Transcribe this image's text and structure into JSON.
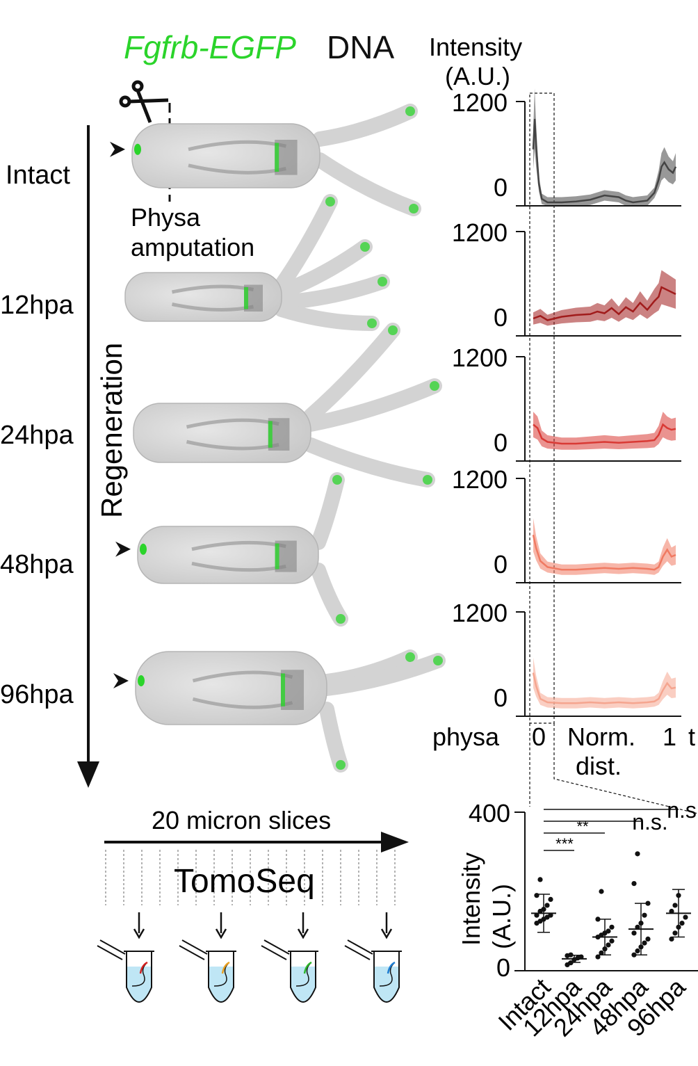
{
  "header": {
    "construct": "Fgfrb-EGFP",
    "stain": "DNA",
    "construct_color": "#2bd42b"
  },
  "schematic": {
    "amputation_label_1": "Physa",
    "amputation_label_2": "amputation",
    "axis_label": "Regeneration",
    "scissors_icon": "scissors-icon",
    "marker_icon": "arrowhead-icon"
  },
  "conditions": [
    {
      "label": "Intact",
      "color": "#444444",
      "arrowhead": true
    },
    {
      "label": "12hpa",
      "color": "#a11c1c",
      "arrowhead": false
    },
    {
      "label": "24hpa",
      "color": "#d93a35",
      "arrowhead": false
    },
    {
      "label": "48hpa",
      "color": "#f07a62",
      "arrowhead": true
    },
    {
      "label": "96hpa",
      "color": "#f5a58f",
      "arrowhead": true
    }
  ],
  "profiles": {
    "ylabel_1": "Intensity",
    "ylabel_2": "(A.U.)",
    "ytick_top": "1200",
    "ytick_bottom": "0",
    "x_left_label": "physa",
    "x_tick_0": "0",
    "x_axis_label_1": "Norm.",
    "x_axis_label_2": "dist.",
    "x_tick_1": "1",
    "x_right_label_partial": "t"
  },
  "tomoseq": {
    "slices_label": "20 micron slices",
    "method_label": "TomoSeq",
    "tube_icon": "eppendorf-tube-icon",
    "tube_liquid_color": "#bfe6f5",
    "tube_line_colors": [
      "#d42020",
      "#e8a020",
      "#2bb52b",
      "#1f7fd4"
    ]
  },
  "chart_data": [
    {
      "type": "line",
      "title": "",
      "xlabel": "Norm. dist.",
      "ylabel": "Intensity (A.U.)",
      "xlim": [
        0,
        1
      ],
      "ylim": [
        0,
        1200
      ],
      "shaded_band": "mean ± sd",
      "series": [
        {
          "name": "Intact",
          "x": [
            0,
            0.01,
            0.02,
            0.04,
            0.06,
            0.1,
            0.2,
            0.3,
            0.4,
            0.5,
            0.6,
            0.65,
            0.7,
            0.75,
            0.8,
            0.85,
            0.88,
            0.9,
            0.92,
            0.95,
            0.98,
            1.0
          ],
          "values": [
            650,
            1000,
            700,
            250,
            80,
            40,
            40,
            50,
            70,
            120,
            100,
            60,
            40,
            50,
            60,
            150,
            300,
            450,
            500,
            420,
            380,
            450
          ]
        },
        {
          "name": "12hpa",
          "x": [
            0,
            0.05,
            0.1,
            0.2,
            0.3,
            0.4,
            0.45,
            0.5,
            0.55,
            0.6,
            0.65,
            0.7,
            0.75,
            0.8,
            0.85,
            0.88,
            0.9,
            0.95,
            1.0
          ],
          "values": [
            200,
            230,
            180,
            220,
            240,
            250,
            280,
            260,
            320,
            250,
            330,
            280,
            380,
            300,
            400,
            450,
            560,
            520,
            480
          ]
        },
        {
          "name": "24hpa",
          "x": [
            0,
            0.03,
            0.06,
            0.1,
            0.2,
            0.3,
            0.4,
            0.5,
            0.6,
            0.7,
            0.8,
            0.85,
            0.88,
            0.91,
            0.94,
            0.97,
            1.0
          ],
          "values": [
            420,
            380,
            260,
            220,
            200,
            200,
            210,
            220,
            210,
            220,
            230,
            240,
            300,
            420,
            380,
            360,
            370
          ]
        },
        {
          "name": "48hpa",
          "x": [
            0,
            0.02,
            0.05,
            0.1,
            0.2,
            0.3,
            0.4,
            0.5,
            0.6,
            0.7,
            0.8,
            0.85,
            0.88,
            0.91,
            0.94,
            0.97,
            1.0
          ],
          "values": [
            550,
            400,
            250,
            180,
            150,
            150,
            160,
            170,
            160,
            170,
            160,
            150,
            180,
            300,
            380,
            300,
            320
          ]
        },
        {
          "name": "96hpa",
          "x": [
            0,
            0.02,
            0.05,
            0.1,
            0.2,
            0.3,
            0.4,
            0.5,
            0.6,
            0.7,
            0.8,
            0.85,
            0.88,
            0.91,
            0.94,
            0.97,
            1.0
          ],
          "values": [
            500,
            350,
            200,
            160,
            150,
            150,
            160,
            150,
            160,
            150,
            160,
            170,
            200,
            300,
            380,
            320,
            330
          ]
        }
      ]
    },
    {
      "type": "scatter",
      "title": "",
      "xlabel": "",
      "ylabel": "Intensity (A.U.)",
      "ylim": [
        0,
        400
      ],
      "yticks": [
        "400",
        "0"
      ],
      "categories": [
        "Intact",
        "12hpa",
        "24hpa",
        "48hpa",
        "96hpa"
      ],
      "points": [
        [
          120,
          125,
          130,
          135,
          140,
          140,
          150,
          155,
          165,
          180,
          190,
          230
        ],
        [
          15,
          20,
          28,
          32,
          35,
          38,
          40
        ],
        [
          35,
          45,
          55,
          65,
          75,
          85,
          90,
          95,
          100,
          110,
          130,
          200
        ],
        [
          40,
          50,
          60,
          70,
          80,
          95,
          110,
          120,
          140,
          170,
          220,
          295
        ],
        [
          80,
          95,
          110,
          120,
          135,
          150,
          165,
          190
        ]
      ],
      "mean": [
        145,
        30,
        85,
        105,
        145
      ],
      "sd": [
        48,
        9,
        45,
        65,
        60
      ],
      "comparisons": [
        {
          "pair": [
            "Intact",
            "12hpa"
          ],
          "label": "***"
        },
        {
          "pair": [
            "Intact",
            "24hpa"
          ],
          "label": "**"
        },
        {
          "pair": [
            "Intact",
            "48hpa"
          ],
          "label": "n.s."
        },
        {
          "pair": [
            "Intact",
            "96hpa"
          ],
          "label": "n.s."
        }
      ]
    }
  ]
}
